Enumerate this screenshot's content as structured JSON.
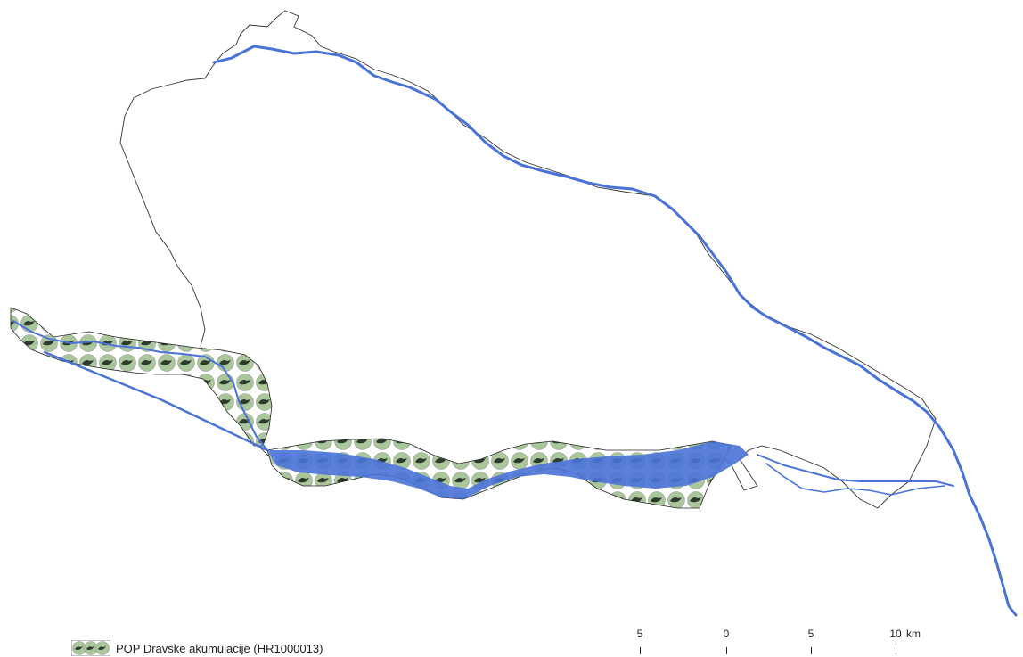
{
  "map": {
    "colors": {
      "water": "#4a73d9",
      "boundary": "#333333",
      "habitat_fill": "#a9c79a",
      "habitat_outline": "#222222"
    }
  },
  "legend": {
    "items": [
      {
        "label": "POP Dravske akumulacije (HR1000013)",
        "icon": "bird-habitat-pattern"
      }
    ]
  },
  "scale_bar": {
    "ticks": [
      "5",
      "0",
      "5",
      "10"
    ],
    "unit": "km"
  }
}
